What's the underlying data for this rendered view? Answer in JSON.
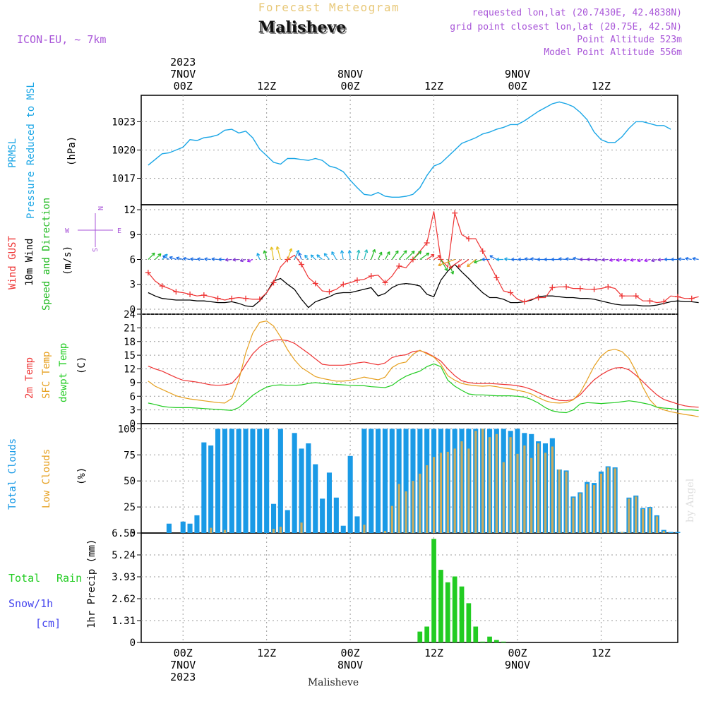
{
  "header": {
    "product": "Forecast Meteogram",
    "location": "Malisheve",
    "model": "ICON-EU, ~ 7km",
    "requested": "requested lon,lat (20.7430E, 42.4838N)",
    "gridpoint": "grid point closest lon,lat (20.75E, 42.5N)",
    "point_alt": "Point Altitude 523m",
    "model_alt": "Model Point Altitude 556m",
    "footer_location": "Malisheve",
    "watermark": "by Angel",
    "compass": {
      "n": "N",
      "s": "S",
      "w": "W",
      "e": "E"
    }
  },
  "colors": {
    "pressure": "#1aa6e6",
    "gust": "#ee3333",
    "wind": "#000000",
    "dir": "#22bb22",
    "temp": "#ee3333",
    "sfc": "#e6a020",
    "dewpt": "#22cc22",
    "total_clouds": "#1a9ae6",
    "low_clouds": "#c9ab5e",
    "rain": "#22cc22",
    "snow": "#4444ee",
    "purple": "#a855d8",
    "title_faint": "#e8c878"
  },
  "time_axis": {
    "top": [
      {
        "hour": 0,
        "lines": [
          "2023",
          "7NOV",
          "00Z"
        ]
      },
      {
        "hour": 12,
        "lines": [
          "12Z"
        ]
      },
      {
        "hour": 24,
        "lines": [
          "8NOV",
          "00Z"
        ]
      },
      {
        "hour": 36,
        "lines": [
          "12Z"
        ]
      },
      {
        "hour": 48,
        "lines": [
          "9NOV",
          "00Z"
        ]
      },
      {
        "hour": 60,
        "lines": [
          "12Z"
        ]
      }
    ],
    "bottom": [
      {
        "hour": 0,
        "lines": [
          "00Z",
          "7NOV",
          "2023"
        ]
      },
      {
        "hour": 12,
        "lines": [
          "12Z"
        ]
      },
      {
        "hour": 24,
        "lines": [
          "00Z",
          "8NOV"
        ]
      },
      {
        "hour": 36,
        "lines": [
          "12Z"
        ]
      },
      {
        "hour": 48,
        "lines": [
          "00Z",
          "9NOV"
        ]
      },
      {
        "hour": 60,
        "lines": [
          "12Z"
        ]
      }
    ]
  },
  "panel_labels": {
    "pressure": [
      "PRMSL",
      "Pressure Reduced to MSL",
      "(hPa)"
    ],
    "wind": [
      "Wind GUST",
      "10m Wind",
      "Speed and Direction",
      "(m/s)"
    ],
    "temp": [
      "2m Temp",
      "SFC Temp",
      "dewpt Temp",
      "(C)"
    ],
    "clouds": [
      "Total Clouds",
      "Low Clouds",
      "(%)"
    ],
    "precip": [
      "Total",
      "Rain",
      "Snow/1h",
      "[cm]",
      "1hr Precip (mm)"
    ]
  },
  "chart_data": [
    {
      "type": "line",
      "title": "PRMSL Pressure Reduced to MSL",
      "ylabel": "(hPa)",
      "x_unit": "hours from 2023-11-07 00Z",
      "ylim": [
        1014.2,
        1025.8
      ],
      "yticks": [
        1017,
        1020,
        1023
      ],
      "series": [
        {
          "name": "PRMSL",
          "x_start": -5,
          "x_step": 1,
          "values": [
            1018.4,
            1019.0,
            1019.6,
            1019.7,
            1020.0,
            1020.3,
            1021.1,
            1021.0,
            1021.3,
            1021.4,
            1021.6,
            1022.1,
            1022.2,
            1021.8,
            1022.0,
            1021.3,
            1020.1,
            1019.4,
            1018.7,
            1018.5,
            1019.1,
            1019.1,
            1019.0,
            1018.9,
            1019.1,
            1018.9,
            1018.3,
            1018.1,
            1017.7,
            1016.8,
            1016.0,
            1015.3,
            1015.2,
            1015.5,
            1015.1,
            1015.0,
            1015.0,
            1015.1,
            1015.3,
            1016.0,
            1017.3,
            1018.3,
            1018.6,
            1019.3,
            1020.0,
            1020.7,
            1021.0,
            1021.3,
            1021.7,
            1021.9,
            1022.2,
            1022.4,
            1022.7,
            1022.7,
            1023.1,
            1023.6,
            1024.1,
            1024.5,
            1024.9,
            1025.1,
            1024.9,
            1024.6,
            1024.0,
            1023.2,
            1021.9,
            1021.1,
            1020.8,
            1020.8,
            1021.4,
            1022.3,
            1023.0,
            1023.0,
            1022.8,
            1022.6,
            1022.6,
            1022.2
          ]
        }
      ]
    },
    {
      "type": "line",
      "title": "Wind GUST / 10m Wind Speed and Direction",
      "ylabel": "(m/s)",
      "x_unit": "hours from 2023-11-07 00Z",
      "ylim": [
        -0.6,
        12.6
      ],
      "yticks": [
        0,
        3,
        6,
        9,
        12
      ],
      "series": [
        {
          "name": "Wind GUST",
          "x_start": -5,
          "x_step": 1,
          "values": [
            4.4,
            3.4,
            2.8,
            2.5,
            2.1,
            2.0,
            1.8,
            1.6,
            1.7,
            1.5,
            1.3,
            1.1,
            1.3,
            1.4,
            1.3,
            1.2,
            1.2,
            2.0,
            3.2,
            5.1,
            6.0,
            6.5,
            5.4,
            3.8,
            3.1,
            2.2,
            2.1,
            2.4,
            3.0,
            3.2,
            3.5,
            3.6,
            4.0,
            4.1,
            3.2,
            4.0,
            5.2,
            5.0,
            6.0,
            7.0,
            8.0,
            11.8,
            6.0,
            5.1,
            11.6,
            9.0,
            8.5,
            8.5,
            7.0,
            5.4,
            3.8,
            2.2,
            2.0,
            1.2,
            0.9,
            1.2,
            1.4,
            1.4,
            2.6,
            2.7,
            2.7,
            2.5,
            2.5,
            2.4,
            2.4,
            2.5,
            2.7,
            2.5,
            1.6,
            1.6,
            1.6,
            1.0,
            1.0,
            0.8,
            0.9,
            1.6,
            1.5,
            1.3,
            1.3,
            1.5
          ]
        },
        {
          "name": "10m Wind",
          "x_start": -5,
          "x_step": 1,
          "values": [
            2.0,
            1.6,
            1.3,
            1.2,
            1.1,
            1.1,
            1.1,
            1.0,
            1.0,
            0.9,
            0.8,
            0.8,
            0.9,
            0.7,
            0.4,
            0.3,
            1.0,
            2.0,
            3.4,
            3.7,
            3.0,
            2.4,
            1.2,
            0.2,
            0.9,
            1.2,
            1.5,
            1.9,
            2.0,
            2.0,
            2.2,
            2.4,
            2.6,
            1.6,
            1.9,
            2.6,
            3.0,
            3.1,
            3.0,
            2.8,
            1.8,
            1.5,
            3.5,
            4.6,
            5.4,
            4.5,
            3.7,
            2.8,
            2.0,
            1.4,
            1.4,
            1.2,
            0.8,
            0.8,
            0.9,
            1.1,
            1.5,
            1.6,
            1.6,
            1.5,
            1.4,
            1.4,
            1.3,
            1.3,
            1.2,
            1.0,
            0.8,
            0.6,
            0.5,
            0.5,
            0.5,
            0.4,
            0.4,
            0.5,
            0.7,
            0.9,
            1.0,
            0.9,
            0.9,
            0.8
          ]
        }
      ],
      "direction_arrow_heading_deg": [
        45,
        45,
        45,
        300,
        290,
        285,
        280,
        275,
        275,
        275,
        275,
        270,
        265,
        265,
        255,
        250,
        340,
        345,
        350,
        345,
        20,
        25,
        340,
        320,
        315,
        310,
        320,
        330,
        350,
        355,
        10,
        15,
        20,
        25,
        30,
        35,
        40,
        45,
        45,
        55,
        55,
        60,
        150,
        160,
        250,
        235,
        235,
        230,
        250,
        270,
        300,
        270,
        275,
        270,
        270,
        275,
        275,
        270,
        270,
        270,
        275,
        275,
        280,
        270,
        270,
        265,
        265,
        260,
        260,
        260,
        260,
        255,
        255,
        255,
        265,
        270,
        270,
        275,
        280,
        280
      ],
      "direction_arrow_color": [
        "#22bb22",
        "#22bb22",
        "#1aa6e6",
        "#1a6ee6",
        "#1a6ee6",
        "#1a6ee6",
        "#1a6ee6",
        "#1a6ee6",
        "#1a6ee6",
        "#1a6ee6",
        "#1a6ee6",
        "#1a6ee6",
        "#7b2fd0",
        "#7b2fd0",
        "#7b2fd0",
        "#a020f0",
        "#1aa6e6",
        "#22bb22",
        "#e6c020",
        "#e6c020",
        "#e6c020",
        "#1aa6e6",
        "#1a6ee6",
        "#1aa6e6",
        "#1aa6e6",
        "#1aa6e6",
        "#1aa6e6",
        "#1aa6e6",
        "#1aa6e6",
        "#1aa6e6",
        "#22bbbb",
        "#22bbbb",
        "#22bb22",
        "#22bb22",
        "#22bb22",
        "#22bb22",
        "#22bb22",
        "#22bb22",
        "#22bb22",
        "#22bb22",
        "#ee3333",
        "#ee3333",
        "#22bb22",
        "#22bb22",
        "#e6a020",
        "#ee3333",
        "#ee3333",
        "#e6a020",
        "#22bb22",
        "#1a6ee6",
        "#1a6ee6",
        "#1aa6e6",
        "#1aa6e6",
        "#1a6ee6",
        "#1a6ee6",
        "#1a6ee6",
        "#1a6ee6",
        "#1a6ee6",
        "#1a6ee6",
        "#1a6ee6",
        "#1a6ee6",
        "#1a6ee6",
        "#1a6ee6",
        "#7b2fd0",
        "#7b2fd0",
        "#7b2fd0",
        "#7b2fd0",
        "#a020f0",
        "#a020f0",
        "#a020f0",
        "#a020f0",
        "#a020f0",
        "#a020f0",
        "#7b2fd0",
        "#7b2fd0",
        "#1a6ee6",
        "#1a6ee6",
        "#1a6ee6",
        "#1a6ee6",
        "#1a6ee6"
      ]
    },
    {
      "type": "line",
      "title": "2m Temp / SFC Temp / dewpt Temp",
      "ylabel": "(C)",
      "x_unit": "hours from 2023-11-07 00Z",
      "ylim": [
        0,
        24
      ],
      "yticks": [
        0,
        3,
        6,
        9,
        12,
        15,
        18,
        21,
        24
      ],
      "series": [
        {
          "name": "2m Temp",
          "x_start": -5,
          "x_step": 1,
          "values": [
            12.6,
            12.0,
            11.5,
            10.8,
            10.1,
            9.5,
            9.3,
            9.1,
            8.8,
            8.5,
            8.4,
            8.5,
            8.8,
            10.5,
            13.0,
            15.3,
            16.8,
            17.8,
            18.3,
            18.4,
            18.2,
            17.6,
            16.5,
            15.4,
            14.2,
            13.0,
            12.8,
            12.8,
            12.8,
            13.0,
            13.3,
            13.5,
            13.2,
            12.9,
            13.3,
            14.5,
            14.9,
            15.1,
            15.8,
            16.0,
            15.5,
            14.7,
            13.7,
            12.0,
            10.5,
            9.4,
            9.0,
            8.8,
            8.8,
            8.8,
            8.7,
            8.6,
            8.5,
            8.3,
            8.0,
            7.5,
            6.8,
            6.1,
            5.5,
            5.1,
            5.0,
            5.3,
            6.3,
            8.0,
            9.6,
            10.7,
            11.6,
            12.2,
            12.3,
            11.8,
            10.6,
            9.2,
            7.7,
            6.3,
            5.3,
            4.8,
            4.3,
            3.9,
            3.7,
            3.6
          ]
        },
        {
          "name": "SFC Temp",
          "x_start": -5,
          "x_step": 1,
          "values": [
            9.3,
            8.2,
            7.5,
            6.8,
            6.1,
            5.7,
            5.4,
            5.2,
            5.0,
            4.8,
            4.6,
            4.5,
            5.5,
            9.5,
            15.5,
            19.8,
            22.2,
            22.5,
            21.4,
            19.0,
            16.2,
            14.0,
            12.3,
            11.3,
            10.3,
            9.9,
            9.6,
            9.3,
            9.3,
            9.5,
            9.8,
            10.2,
            9.9,
            9.6,
            10.2,
            12.3,
            13.2,
            13.5,
            15.2,
            16.1,
            15.3,
            14.6,
            13.0,
            10.5,
            9.5,
            8.8,
            8.5,
            8.3,
            8.2,
            8.3,
            8.1,
            7.8,
            7.6,
            7.3,
            7.0,
            6.5,
            5.7,
            5.0,
            4.6,
            4.5,
            4.6,
            5.2,
            6.8,
            9.6,
            12.6,
            14.8,
            16.0,
            16.3,
            15.8,
            14.3,
            11.5,
            8.0,
            5.2,
            3.6,
            3.0,
            2.6,
            2.3,
            2.0,
            1.8,
            1.5
          ]
        },
        {
          "name": "dewpt Temp",
          "x_start": -5,
          "x_step": 1,
          "values": [
            4.5,
            4.2,
            3.8,
            3.6,
            3.5,
            3.5,
            3.5,
            3.4,
            3.3,
            3.2,
            3.1,
            3.0,
            2.9,
            3.5,
            4.8,
            6.2,
            7.2,
            8.0,
            8.4,
            8.5,
            8.4,
            8.4,
            8.5,
            8.8,
            9.0,
            8.8,
            8.7,
            8.6,
            8.5,
            8.4,
            8.3,
            8.3,
            8.1,
            8.0,
            7.9,
            8.4,
            9.5,
            10.4,
            11.0,
            11.5,
            12.5,
            13.1,
            12.5,
            9.5,
            8.2,
            7.3,
            6.5,
            6.3,
            6.3,
            6.2,
            6.1,
            6.1,
            6.1,
            6.0,
            5.8,
            5.3,
            4.5,
            3.5,
            2.8,
            2.5,
            2.4,
            3.0,
            4.3,
            4.6,
            4.5,
            4.4,
            4.5,
            4.6,
            4.8,
            5.0,
            4.8,
            4.5,
            4.2,
            3.6,
            3.4,
            3.3,
            3.1,
            3.0,
            3.0,
            2.9
          ]
        }
      ]
    },
    {
      "type": "bar",
      "title": "Total Clouds / Low Clouds",
      "ylabel": "(%)",
      "x_unit": "hours from 2023-11-07 00Z",
      "ylim": [
        0,
        105
      ],
      "yticks": [
        0,
        25,
        50,
        75,
        100
      ],
      "series": [
        {
          "name": "Total Clouds",
          "x_start": -2,
          "x_step": 1,
          "values": [
            9,
            0,
            11,
            9,
            17,
            87,
            84,
            100,
            100,
            100,
            100,
            100,
            100,
            100,
            100,
            28,
            100,
            22,
            96,
            81,
            86,
            66,
            33,
            58,
            34,
            7,
            74,
            16,
            100,
            100,
            100,
            100,
            100,
            100,
            100,
            100,
            100,
            100,
            100,
            100,
            100,
            100,
            100,
            100,
            100,
            100,
            100,
            100,
            100,
            98,
            100,
            96,
            95,
            88,
            86,
            91,
            61,
            60,
            35,
            39,
            49,
            48,
            59,
            64,
            63,
            1,
            34,
            36,
            24,
            25,
            17,
            3,
            1,
            1,
            1,
            13,
            24,
            28,
            26
          ]
        },
        {
          "name": "Low Clouds",
          "x_start": -2,
          "x_step": 1,
          "values": [
            0,
            0,
            0,
            0,
            0,
            0,
            5,
            0,
            3,
            0,
            0,
            0,
            0,
            0,
            0,
            4,
            6,
            0,
            0,
            10,
            0,
            0,
            0,
            0,
            0,
            0,
            0,
            0,
            8,
            0,
            0,
            2,
            26,
            47,
            40,
            50,
            57,
            65,
            73,
            77,
            78,
            81,
            88,
            81,
            98,
            100,
            92,
            95,
            68,
            92,
            76,
            84,
            72,
            86,
            77,
            83,
            61,
            59,
            34,
            38,
            47,
            46,
            57,
            63,
            62,
            1,
            33,
            35,
            23,
            24,
            16,
            2,
            0,
            0,
            0,
            12,
            23,
            27,
            25
          ]
        }
      ]
    },
    {
      "type": "bar",
      "title": "1hr Precip (mm)",
      "ylabel": "1hr Precip (mm)",
      "x_unit": "hours from 2023-11-07 00Z",
      "ylim": [
        0,
        6.55
      ],
      "yticks": [
        0,
        1.31,
        2.62,
        3.93,
        5.24,
        6.55
      ],
      "series": [
        {
          "name": "Total",
          "x_start": 34,
          "x_step": 1,
          "values": [
            0.65,
            0.95,
            6.2,
            4.35,
            3.6,
            3.95,
            3.35,
            2.35,
            0.95,
            0.05,
            0.35,
            0.15,
            0.05
          ]
        },
        {
          "name": "Snow/1h",
          "x_start": 34,
          "x_step": 1,
          "values": [
            0,
            0,
            0,
            0,
            0,
            0,
            0,
            0,
            0,
            0,
            0,
            0,
            0
          ]
        }
      ]
    }
  ]
}
